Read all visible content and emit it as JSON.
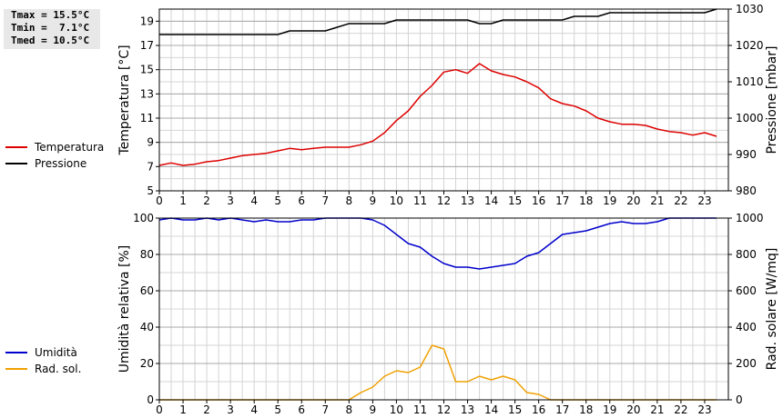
{
  "stats": {
    "tmax": "Tmax = 15.5°C",
    "tmin": "Tmin =  7.1°C",
    "tmed": "Tmed = 10.5°C"
  },
  "legend_top": [
    {
      "label": "Temperatura",
      "color": "#dd0000"
    },
    {
      "label": "Pressione",
      "color": "#000000"
    }
  ],
  "legend_bottom": [
    {
      "label": "Umidità",
      "color": "#0000cc"
    },
    {
      "label": "Rad. sol.",
      "color": "#f0a000"
    }
  ],
  "chart_data": [
    {
      "type": "line",
      "xlim": [
        0,
        24
      ],
      "x_ticks": [
        0,
        1,
        2,
        3,
        4,
        5,
        6,
        7,
        8,
        9,
        10,
        11,
        12,
        13,
        14,
        15,
        16,
        17,
        18,
        19,
        20,
        21,
        22,
        23
      ],
      "ylabel": "Temperatura [°C]",
      "ylim": [
        5,
        20
      ],
      "y_ticks": [
        5,
        7,
        9,
        11,
        13,
        15,
        17,
        19
      ],
      "y2label": "Pressione [mbar]",
      "y2lim": [
        980,
        1030
      ],
      "y2_ticks": [
        980,
        990,
        1000,
        1010,
        1020,
        1030
      ],
      "grid": true,
      "series": [
        {
          "name": "Temperatura",
          "color": "#dd0000",
          "axis": "left",
          "x": [
            0,
            0.5,
            1,
            1.5,
            2,
            2.5,
            3,
            3.5,
            4,
            4.5,
            5,
            5.5,
            6,
            6.5,
            7,
            7.5,
            8,
            8.5,
            9,
            9.5,
            10,
            10.5,
            11,
            11.5,
            12,
            12.5,
            13,
            13.5,
            14,
            14.5,
            15,
            15.5,
            16,
            16.5,
            17,
            17.5,
            18,
            18.5,
            19,
            19.5,
            20,
            20.5,
            21,
            21.5,
            22,
            22.5,
            23,
            23.5
          ],
          "y": [
            7.1,
            7.3,
            7.1,
            7.2,
            7.4,
            7.5,
            7.7,
            7.9,
            8.0,
            8.1,
            8.3,
            8.5,
            8.4,
            8.5,
            8.6,
            8.6,
            8.6,
            8.8,
            9.1,
            9.8,
            10.8,
            11.6,
            12.8,
            13.7,
            14.8,
            15.0,
            14.7,
            15.5,
            14.9,
            14.6,
            14.4,
            14.0,
            13.5,
            12.6,
            12.2,
            12.0,
            11.6,
            11.0,
            10.7,
            10.5,
            10.5,
            10.4,
            10.1,
            9.9,
            9.8,
            9.6,
            9.8,
            9.5
          ]
        },
        {
          "name": "Pressione",
          "color": "#000000",
          "axis": "right",
          "x": [
            0,
            1,
            2,
            3,
            4,
            5,
            5.5,
            6,
            7,
            7.5,
            8,
            9,
            9.5,
            10,
            11,
            12,
            13,
            13.5,
            14,
            14.5,
            15,
            16,
            17,
            17.5,
            18,
            18.5,
            19,
            20,
            21,
            22,
            23,
            23.5
          ],
          "y": [
            1023,
            1023,
            1023,
            1023,
            1023,
            1023,
            1024,
            1024,
            1024,
            1025,
            1026,
            1026,
            1026,
            1027,
            1027,
            1027,
            1027,
            1026,
            1026,
            1027,
            1027,
            1027,
            1027,
            1028,
            1028,
            1028,
            1029,
            1029,
            1029,
            1029,
            1029,
            1030
          ]
        }
      ]
    },
    {
      "type": "line",
      "xlim": [
        0,
        24
      ],
      "x_ticks": [
        0,
        1,
        2,
        3,
        4,
        5,
        6,
        7,
        8,
        9,
        10,
        11,
        12,
        13,
        14,
        15,
        16,
        17,
        18,
        19,
        20,
        21,
        22,
        23
      ],
      "ylabel": "Umidità relativa [%]",
      "ylim": [
        0,
        100
      ],
      "y_ticks": [
        0,
        20,
        40,
        60,
        80,
        100
      ],
      "y2label": "Rad. solare [W/mq]",
      "y2lim": [
        0,
        1000
      ],
      "y2_ticks": [
        0,
        200,
        400,
        600,
        800,
        1000
      ],
      "grid": true,
      "series": [
        {
          "name": "Umidità",
          "color": "#0000cc",
          "axis": "left",
          "x": [
            0,
            0.5,
            1,
            1.5,
            2,
            2.5,
            3,
            3.5,
            4,
            4.5,
            5,
            5.5,
            6,
            6.5,
            7,
            7.5,
            8,
            8.5,
            9,
            9.5,
            10,
            10.5,
            11,
            11.5,
            12,
            12.5,
            13,
            13.5,
            14,
            14.5,
            15,
            15.5,
            16,
            16.5,
            17,
            17.5,
            18,
            18.5,
            19,
            19.5,
            20,
            20.5,
            21,
            21.5,
            22,
            22.5,
            23,
            23.5
          ],
          "y": [
            99,
            100,
            99,
            99,
            100,
            99,
            100,
            99,
            98,
            99,
            98,
            98,
            99,
            99,
            100,
            100,
            100,
            100,
            99,
            96,
            91,
            86,
            84,
            79,
            75,
            73,
            73,
            72,
            73,
            74,
            75,
            79,
            81,
            86,
            91,
            92,
            93,
            95,
            97,
            98,
            97,
            97,
            98,
            100,
            100,
            100,
            100,
            100
          ]
        },
        {
          "name": "Rad. sol.",
          "color": "#f0a000",
          "axis": "right",
          "x": [
            0,
            1,
            2,
            3,
            4,
            5,
            6,
            7,
            8,
            8.5,
            9,
            9.5,
            10,
            10.5,
            11,
            11.5,
            12,
            12.5,
            13,
            13.5,
            14,
            14.5,
            15,
            15.5,
            16,
            16.5,
            17,
            18,
            19,
            20,
            21,
            22,
            23,
            23.5
          ],
          "y": [
            0,
            0,
            0,
            0,
            0,
            0,
            0,
            0,
            0,
            40,
            70,
            130,
            160,
            150,
            180,
            300,
            280,
            100,
            100,
            130,
            110,
            130,
            110,
            40,
            30,
            0,
            0,
            0,
            0,
            0,
            0,
            0,
            0,
            0
          ]
        }
      ]
    }
  ]
}
